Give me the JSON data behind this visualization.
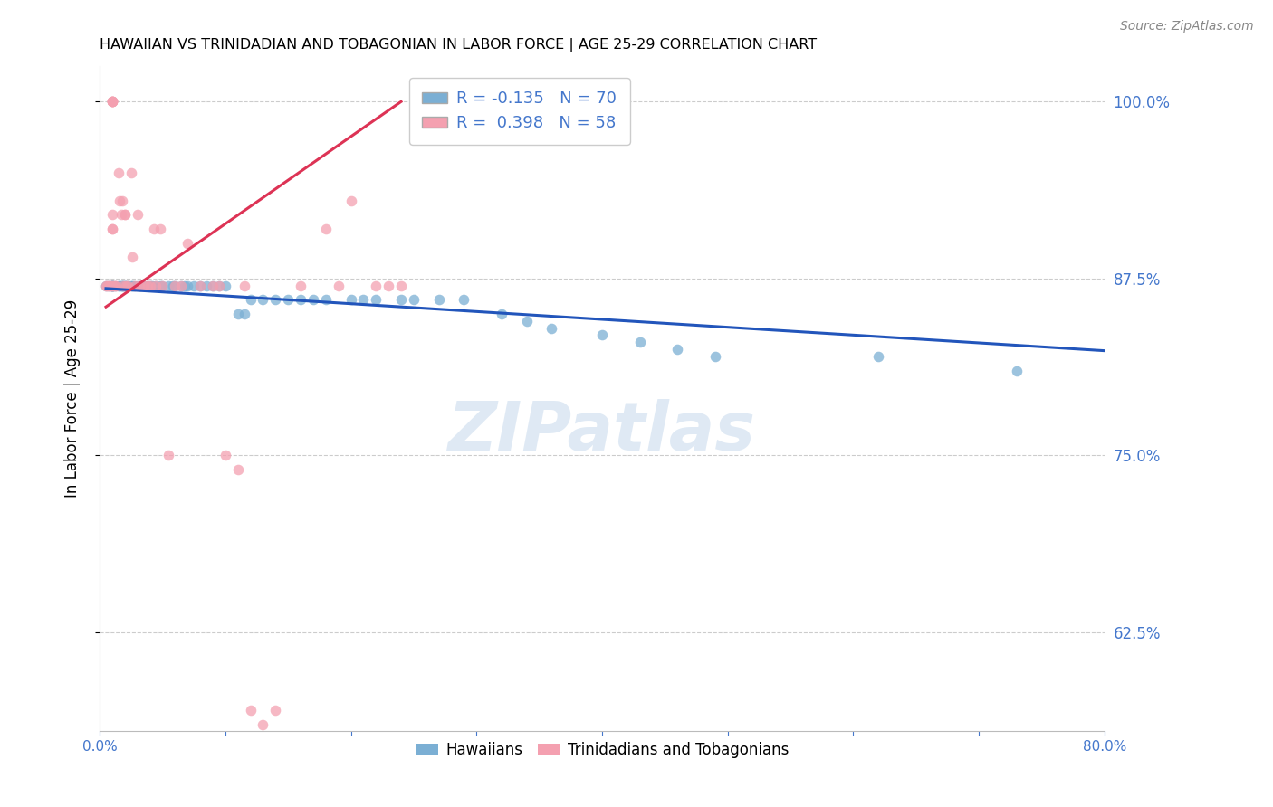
{
  "title": "HAWAIIAN VS TRINIDADIAN AND TOBAGONIAN IN LABOR FORCE | AGE 25-29 CORRELATION CHART",
  "source_text": "Source: ZipAtlas.com",
  "ylabel": "In Labor Force | Age 25-29",
  "xlim": [
    0.0,
    0.8
  ],
  "ylim": [
    0.555,
    1.025
  ],
  "xticks": [
    0.0,
    0.1,
    0.2,
    0.3,
    0.4,
    0.5,
    0.6,
    0.7,
    0.8
  ],
  "xticklabels": [
    "0.0%",
    "",
    "",
    "",
    "",
    "",
    "",
    "",
    "80.0%"
  ],
  "yticks": [
    0.625,
    0.75,
    0.875,
    1.0
  ],
  "yticklabels": [
    "62.5%",
    "75.0%",
    "87.5%",
    "100.0%"
  ],
  "blue_color": "#7BAFD4",
  "pink_color": "#F4A0B0",
  "blue_line_color": "#2255BB",
  "pink_line_color": "#DD3355",
  "legend_R1": "-0.135",
  "legend_N1": "70",
  "legend_R2": "0.398",
  "legend_N2": "58",
  "legend_label1": "Hawaiians",
  "legend_label2": "Trinidadians and Tobagonians",
  "watermark": "ZIPatlas",
  "axis_color": "#4477CC",
  "grid_color": "#CCCCCC",
  "hawaiians_x": [
    0.005,
    0.007,
    0.009,
    0.01,
    0.01,
    0.01,
    0.01,
    0.01,
    0.012,
    0.015,
    0.016,
    0.017,
    0.018,
    0.018,
    0.019,
    0.02,
    0.02,
    0.021,
    0.022,
    0.023,
    0.025,
    0.026,
    0.027,
    0.03,
    0.032,
    0.033,
    0.035,
    0.038,
    0.04,
    0.042,
    0.045,
    0.048,
    0.05,
    0.055,
    0.058,
    0.06,
    0.065,
    0.068,
    0.07,
    0.075,
    0.08,
    0.085,
    0.09,
    0.095,
    0.1,
    0.11,
    0.115,
    0.12,
    0.13,
    0.14,
    0.15,
    0.16,
    0.17,
    0.18,
    0.2,
    0.21,
    0.22,
    0.24,
    0.25,
    0.27,
    0.29,
    0.32,
    0.34,
    0.36,
    0.4,
    0.43,
    0.46,
    0.49,
    0.62,
    0.73
  ],
  "hawaiians_y": [
    0.87,
    0.87,
    0.87,
    0.87,
    0.87,
    0.87,
    0.87,
    0.87,
    0.87,
    0.87,
    0.87,
    0.87,
    0.87,
    0.87,
    0.87,
    0.87,
    0.87,
    0.87,
    0.87,
    0.87,
    0.87,
    0.87,
    0.87,
    0.87,
    0.87,
    0.87,
    0.87,
    0.87,
    0.87,
    0.87,
    0.87,
    0.87,
    0.87,
    0.87,
    0.87,
    0.87,
    0.87,
    0.87,
    0.87,
    0.87,
    0.87,
    0.87,
    0.87,
    0.87,
    0.87,
    0.85,
    0.85,
    0.86,
    0.86,
    0.86,
    0.86,
    0.86,
    0.86,
    0.86,
    0.86,
    0.86,
    0.86,
    0.86,
    0.86,
    0.86,
    0.86,
    0.85,
    0.845,
    0.84,
    0.835,
    0.83,
    0.825,
    0.82,
    0.82,
    0.81
  ],
  "trinidadian_x": [
    0.005,
    0.006,
    0.007,
    0.008,
    0.009,
    0.01,
    0.01,
    0.01,
    0.01,
    0.01,
    0.01,
    0.01,
    0.01,
    0.01,
    0.011,
    0.012,
    0.013,
    0.015,
    0.016,
    0.017,
    0.018,
    0.019,
    0.02,
    0.02,
    0.021,
    0.022,
    0.025,
    0.026,
    0.028,
    0.03,
    0.032,
    0.035,
    0.038,
    0.04,
    0.043,
    0.045,
    0.048,
    0.05,
    0.055,
    0.06,
    0.065,
    0.07,
    0.08,
    0.09,
    0.095,
    0.1,
    0.11,
    0.115,
    0.12,
    0.13,
    0.14,
    0.16,
    0.18,
    0.19,
    0.2,
    0.22,
    0.23,
    0.24
  ],
  "trinidadian_y": [
    0.87,
    0.87,
    0.87,
    0.87,
    0.87,
    1.0,
    1.0,
    1.0,
    1.0,
    1.0,
    0.92,
    0.91,
    0.91,
    0.87,
    0.87,
    0.87,
    0.87,
    0.95,
    0.93,
    0.92,
    0.93,
    0.87,
    0.92,
    0.92,
    0.87,
    0.87,
    0.95,
    0.89,
    0.87,
    0.92,
    0.87,
    0.87,
    0.87,
    0.87,
    0.91,
    0.87,
    0.91,
    0.87,
    0.75,
    0.87,
    0.87,
    0.9,
    0.87,
    0.87,
    0.87,
    0.75,
    0.74,
    0.87,
    0.57,
    0.56,
    0.57,
    0.87,
    0.91,
    0.87,
    0.93,
    0.87,
    0.87,
    0.87
  ],
  "blue_trend_x": [
    0.005,
    0.8
  ],
  "blue_trend_y": [
    0.868,
    0.824
  ],
  "pink_trend_x": [
    0.005,
    0.24
  ],
  "pink_trend_y": [
    0.855,
    1.0
  ]
}
